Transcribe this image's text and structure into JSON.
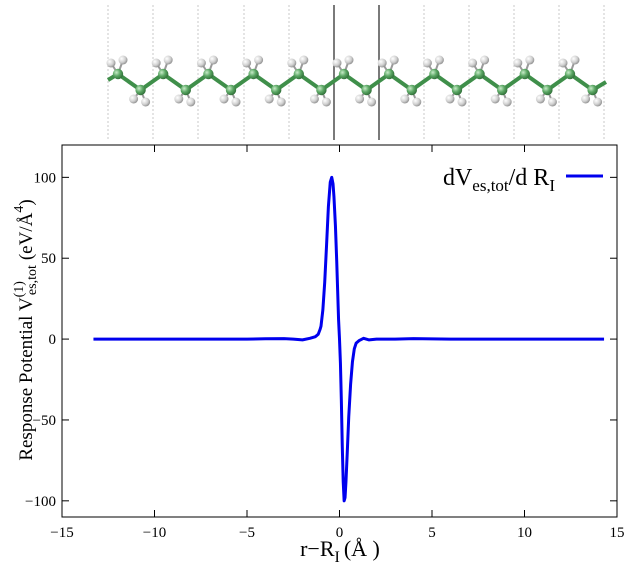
{
  "chart_data": {
    "type": "line",
    "xlabel": "r−R",
    "xlabel_sub": "I",
    "xlabel_unit": "(Å )",
    "ylabel": "Response Potential V",
    "ylabel_sup": "(1)",
    "ylabel_sub": "es,tot",
    "ylabel_unit": "(eV/Å",
    "ylabel_unit_sup": "4",
    "ylabel_unit_close": ")",
    "xlim": [
      -15,
      15
    ],
    "ylim": [
      -110,
      120
    ],
    "x_ticks": [
      {
        "value": -15,
        "label": "−15"
      },
      {
        "value": -10,
        "label": "−10"
      },
      {
        "value": -5,
        "label": "−5"
      },
      {
        "value": 0,
        "label": "0"
      },
      {
        "value": 5,
        "label": "5"
      },
      {
        "value": 10,
        "label": "10"
      },
      {
        "value": 15,
        "label": "15"
      }
    ],
    "y_ticks": [
      {
        "value": -100,
        "label": "−100"
      },
      {
        "value": -50,
        "label": "−50"
      },
      {
        "value": 0,
        "label": "0"
      },
      {
        "value": 50,
        "label": "50"
      },
      {
        "value": 100,
        "label": "100"
      }
    ],
    "grid": false,
    "legend_position": "top-right",
    "legend": {
      "text_main": "dV",
      "text_sub1": "es,tot",
      "text_mid": "/d R",
      "text_sub2": "I"
    },
    "series": [
      {
        "color": "#0000ee",
        "x": [
          -13.3,
          -12.0,
          -10.0,
          -8.0,
          -6.0,
          -5.0,
          -4.0,
          -3.0,
          -2.5,
          -2.0,
          -1.6,
          -1.3,
          -1.15,
          -1.05,
          -1.0,
          -0.9,
          -0.8,
          -0.7,
          -0.6,
          -0.5,
          -0.42,
          -0.35,
          -0.3,
          -0.22,
          -0.15,
          -0.1,
          -0.05,
          0.0,
          0.05,
          0.1,
          0.15,
          0.2,
          0.25,
          0.3,
          0.35,
          0.42,
          0.5,
          0.6,
          0.7,
          0.8,
          0.9,
          1.05,
          1.3,
          1.6,
          2.0,
          3.0,
          4.0,
          6.0,
          8.0,
          10.0,
          12.0,
          14.3
        ],
        "y": [
          0,
          0,
          0,
          0,
          0,
          0,
          0.2,
          0.3,
          0,
          -0.5,
          0.5,
          1.5,
          3,
          6,
          8,
          18,
          35,
          58,
          82,
          97,
          100,
          96,
          88,
          70,
          48,
          30,
          12,
          0,
          -15,
          -38,
          -66,
          -88,
          -100,
          -98,
          -88,
          -70,
          -48,
          -28,
          -14,
          -6,
          -2.5,
          -1,
          0.5,
          -0.5,
          0,
          0,
          0.3,
          0,
          0,
          0,
          0,
          0
        ]
      }
    ]
  },
  "molecule": {
    "backbone_color": "#3f8f4a",
    "carbon_color": "#5ca865",
    "hydrogen_color": "#d4d4d4"
  }
}
